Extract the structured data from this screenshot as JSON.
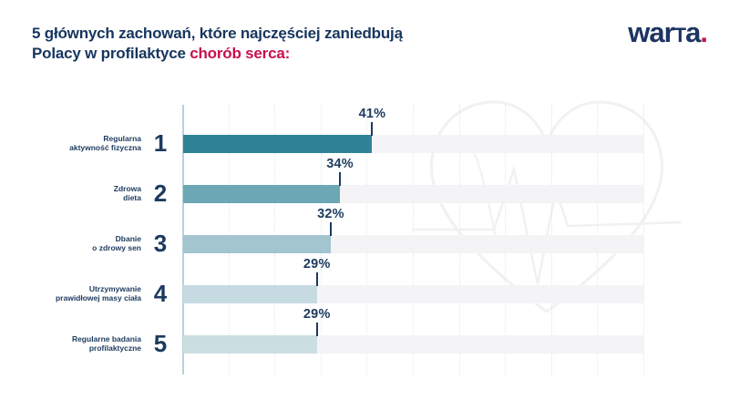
{
  "header": {
    "title_line1": "5 głównych zachowań, które najczęściej zaniedbują",
    "title_line2_prefix": "Polacy w profilaktyce ",
    "title_line2_highlight": "chorób serca:",
    "title_color": "#16365e",
    "highlight_color": "#c8104b"
  },
  "logo": {
    "part_war": "war",
    "part_t": "t",
    "part_a": "a",
    "dot": ".",
    "text_color": "#1d3563",
    "dot_color": "#c3164f"
  },
  "chart_data": {
    "type": "bar",
    "orientation": "horizontal",
    "title": "5 głównych zachowań, które najczęściej zaniedbują Polacy w profilaktyce chorób serca:",
    "xlim": [
      0,
      100
    ],
    "grid": "vertical-dotted",
    "gridline_step_percent": 10,
    "categories": [
      "Regularna aktywność fizyczna",
      "Zdrowa dieta",
      "Dbanie o zdrowy sen",
      "Utrzymywanie prawidłowej masy ciała",
      "Regularne badania profilaktyczne"
    ],
    "values": [
      41,
      34,
      32,
      29,
      29
    ],
    "rows": [
      {
        "rank": "1",
        "label_line1": "Regularna",
        "label_line2": "aktywność fizyczna",
        "value": 41,
        "value_label": "41%",
        "bar_color": "#2f8397"
      },
      {
        "rank": "2",
        "label_line1": "Zdrowa",
        "label_line2": "dieta",
        "value": 34,
        "value_label": "34%",
        "bar_color": "#6ba7b4"
      },
      {
        "rank": "3",
        "label_line1": "Dbanie",
        "label_line2": "o zdrowy sen",
        "value": 32,
        "value_label": "32%",
        "bar_color": "#a2c5cf"
      },
      {
        "rank": "4",
        "label_line1": "Utrzymywanie",
        "label_line2": "prawidłowej masy ciała",
        "value": 29,
        "value_label": "29%",
        "bar_color": "#c6dbe1"
      },
      {
        "rank": "5",
        "label_line1": "Regularne badania",
        "label_line2": "profilaktyczne",
        "value": 29,
        "value_label": "29%",
        "bar_color": "#cbdee2"
      }
    ],
    "track_color": "#f4f4f6",
    "axis_color": "#bdd0d8",
    "gridline_color": "#dfe8ec",
    "value_label_color": "#1c3a5e",
    "watermark": "heart-ekg-outline",
    "legend": "none"
  }
}
